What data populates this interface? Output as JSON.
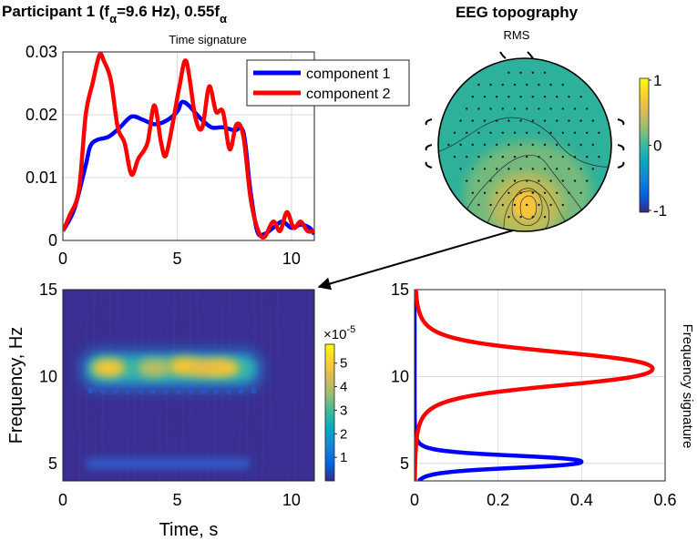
{
  "chart_data": [
    {
      "type": "line",
      "panel": "time-signature",
      "title": {
        "prefix": "Participant 1 (f",
        "sub1": "α",
        "mid": "=9.6 Hz), 0.55f",
        "sub2": "α"
      },
      "subtitle": "Time signature",
      "xlim": [
        0,
        11
      ],
      "ylim": [
        0,
        0.03
      ],
      "xticks": [
        0,
        5,
        10
      ],
      "yticks": [
        0,
        0.01,
        0.02,
        0.03
      ],
      "xtick_labels": [
        "0",
        "5",
        "10"
      ],
      "ytick_labels": [
        "0",
        "0.01",
        "0.02",
        "0.03"
      ],
      "grid": true,
      "legend_position": "top-right",
      "series": [
        {
          "name": "component 1",
          "color": "#0000ff",
          "x": [
            0,
            0.5,
            1,
            1.2,
            1.5,
            2,
            2.5,
            3,
            3.5,
            4,
            4.5,
            5,
            5.2,
            5.5,
            6,
            6.5,
            7,
            7.5,
            7.9,
            8.2,
            8.5,
            8.8,
            9.2,
            9.6,
            10,
            10.4,
            10.8,
            11
          ],
          "y": [
            0.0015,
            0.005,
            0.012,
            0.015,
            0.016,
            0.0165,
            0.018,
            0.0197,
            0.0192,
            0.0185,
            0.019,
            0.0205,
            0.022,
            0.0215,
            0.0195,
            0.018,
            0.018,
            0.0175,
            0.0172,
            0.008,
            0.0015,
            0.001,
            0.002,
            0.003,
            0.002,
            0.0025,
            0.002,
            0.001
          ]
        },
        {
          "name": "component 2",
          "color": "#ff0000",
          "x": [
            0,
            0.3,
            0.7,
            1,
            1.3,
            1.6,
            1.8,
            2.1,
            2.4,
            2.7,
            3,
            3.3,
            3.7,
            4,
            4.3,
            4.5,
            4.8,
            5.1,
            5.4,
            5.8,
            6.1,
            6.4,
            6.7,
            7,
            7.3,
            7.6,
            7.9,
            8.2,
            8.5,
            8.8,
            9.2,
            9.5,
            9.8,
            10.1,
            10.4,
            10.7,
            11
          ],
          "y": [
            0.0015,
            0.004,
            0.008,
            0.02,
            0.025,
            0.0295,
            0.0285,
            0.0255,
            0.018,
            0.0155,
            0.0105,
            0.013,
            0.0155,
            0.0215,
            0.0155,
            0.0135,
            0.0185,
            0.0245,
            0.0285,
            0.0195,
            0.018,
            0.0245,
            0.0205,
            0.0205,
            0.0145,
            0.0185,
            0.0165,
            0.007,
            0.002,
            0.0005,
            0.003,
            0.0015,
            0.0045,
            0.002,
            0.003,
            0.0015,
            0.0015
          ]
        }
      ]
    },
    {
      "type": "heatmap",
      "panel": "spectrogram",
      "xlabel": "Time, s",
      "ylabel": "Frequency, Hz",
      "xlim": [
        0,
        11
      ],
      "ylim": [
        4,
        15
      ],
      "xticks": [
        0,
        5,
        10
      ],
      "yticks": [
        5,
        10,
        15
      ],
      "xtick_labels": [
        "0",
        "5",
        "10"
      ],
      "ytick_labels": [
        "5",
        "10",
        "15"
      ],
      "colorbar": {
        "exponent_label": "×10",
        "exponent": "-5",
        "ticks": [
          1,
          2,
          3,
          4,
          5
        ],
        "tick_labels": [
          "1",
          "2",
          "3",
          "4",
          "5"
        ],
        "range": [
          0,
          5.8
        ]
      },
      "blobs": [
        {
          "t": 2.0,
          "f": 10.5,
          "peak": 5.2
        },
        {
          "t": 5.3,
          "f": 10.6,
          "peak": 5.4
        },
        {
          "t": 7.0,
          "f": 10.5,
          "peak": 5.0
        },
        {
          "t": 4.0,
          "f": 10.5,
          "peak": 3.6
        },
        {
          "t": 6.2,
          "f": 10.5,
          "peak": 4.2
        }
      ],
      "low_band": {
        "t_start": 1.0,
        "t_end": 8.2,
        "f": 5.0,
        "level": 1.4
      }
    },
    {
      "type": "line",
      "panel": "frequency-signature",
      "ylabel": "Frequency signature",
      "xlim": [
        0,
        0.6
      ],
      "ylim": [
        4,
        15
      ],
      "xticks": [
        0,
        0.2,
        0.4,
        0.6
      ],
      "yticks": [
        5,
        10,
        15
      ],
      "xtick_labels": [
        "0",
        "0.2",
        "0.4",
        "0.6"
      ],
      "ytick_labels": [
        "5",
        "10",
        "15"
      ],
      "grid": true,
      "series": [
        {
          "name": "component 1",
          "color": "#0000ff",
          "peak_freq": 5.1,
          "peak_value": 0.4,
          "width": 0.4
        },
        {
          "name": "component 2",
          "color": "#ff0000",
          "peak_freq": 10.45,
          "peak_value": 0.57,
          "width": 1.1
        }
      ]
    },
    {
      "type": "heatmap",
      "panel": "eeg-topography",
      "title": "EEG topography",
      "head_label": "RMS",
      "colorbar": {
        "ticks": [
          -1,
          0,
          1
        ],
        "tick_labels": [
          "-1",
          "0",
          "1"
        ],
        "range": [
          -1,
          1
        ]
      },
      "hotspot": {
        "x": 0.2,
        "y": -0.6,
        "peak": 0.85
      }
    }
  ]
}
